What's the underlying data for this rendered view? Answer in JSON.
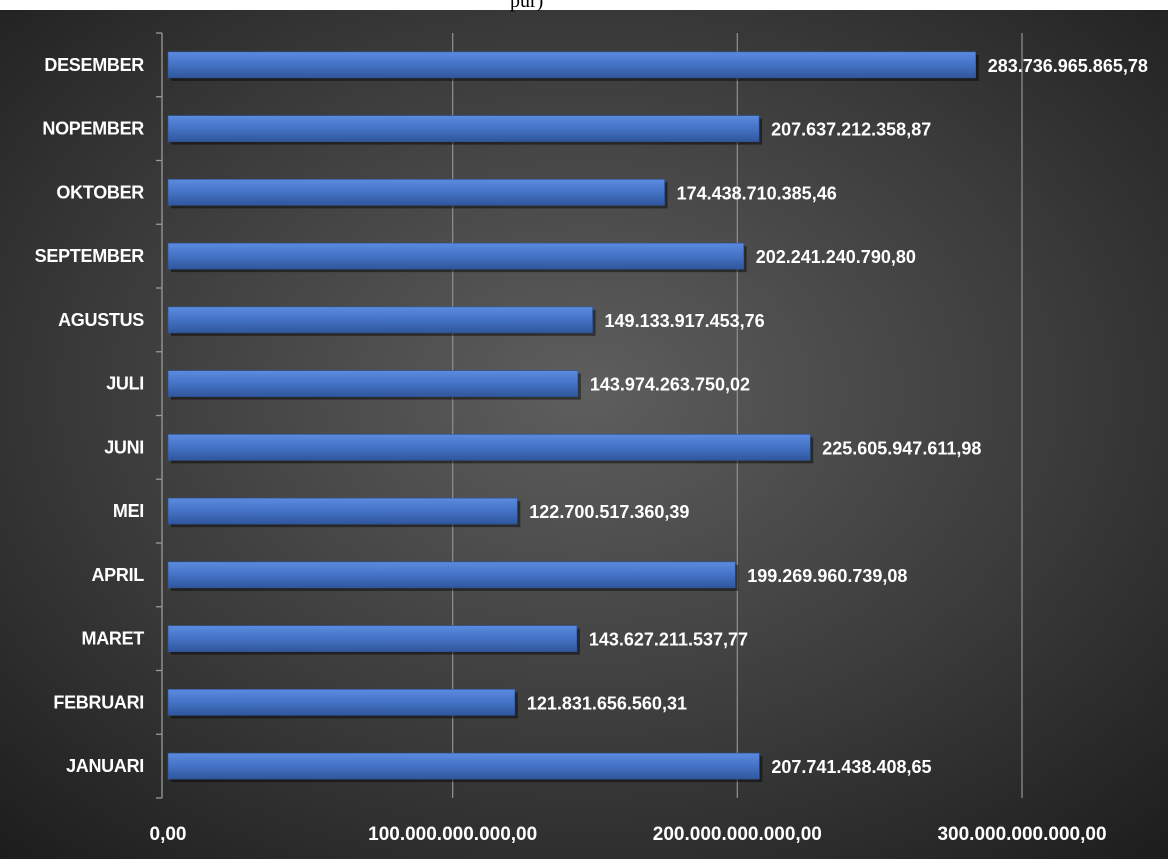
{
  "header_fragment": "pur)",
  "colors": {
    "bar_fill": "#4472C4",
    "gridline": "#8c8c8c",
    "axis": "#9a9a9a",
    "text": "#ffffff"
  },
  "chart_data": {
    "type": "bar",
    "orientation": "horizontal",
    "title": "",
    "xlabel": "",
    "ylabel": "",
    "categories": [
      "JANUARI",
      "FEBRUARI",
      "MARET",
      "APRIL",
      "MEI",
      "JUNI",
      "JULI",
      "AGUSTUS",
      "SEPTEMBER",
      "OKTOBER",
      "NOPEMBER",
      "DESEMBER"
    ],
    "values": [
      207741438408.65,
      121831656560.31,
      143627211537.77,
      199269960739.08,
      122700517360.39,
      225605947611.98,
      143974263750.02,
      149133917453.76,
      202241240790.8,
      174438710385.46,
      207637212358.87,
      283736965865.78
    ],
    "value_labels": [
      "207.741.438.408,65",
      "121.831.656.560,31",
      "143.627.211.537,77",
      "199.269.960.739,08",
      "122.700.517.360,39",
      "225.605.947.611,98",
      "143.974.263.750,02",
      "149.133.917.453,76",
      "202.241.240.790,80",
      "174.438.710.385,46",
      "207.637.212.358,87",
      "283.736.965.865,78"
    ],
    "xlim": [
      0,
      300000000000
    ],
    "x_ticks": [
      0,
      100000000000,
      200000000000,
      300000000000
    ],
    "x_tick_labels": [
      "0,00",
      "100.000.000.000,00",
      "200.000.000.000,00",
      "300.000.000.000,00"
    ],
    "grid": true,
    "legend": "none"
  }
}
